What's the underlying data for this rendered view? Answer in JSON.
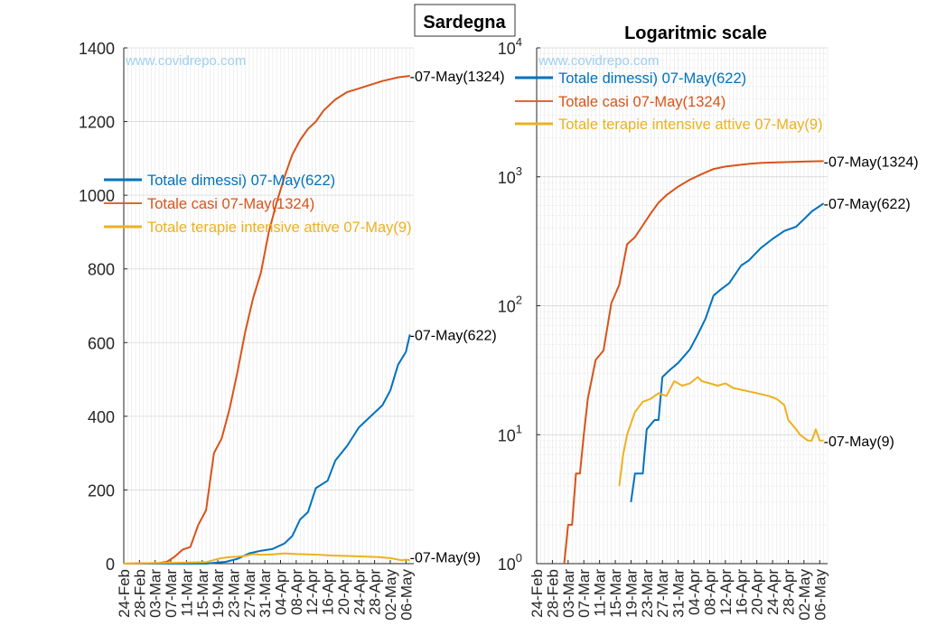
{
  "suptitle": "Sardegna",
  "watermark": "www.covidrepo.com",
  "colors": {
    "dimessi": "#0072BD",
    "casi": "#D95319",
    "terapie": "#EDB120",
    "watermark": "#9fd0f0"
  },
  "chart_data": [
    {
      "type": "line",
      "title": "",
      "xlabel": "",
      "ylabel": "",
      "ylim": [
        0,
        1400
      ],
      "yticks": [
        "0",
        "200",
        "400",
        "600",
        "800",
        "1000",
        "1200",
        "1400"
      ],
      "xticks": [
        "24-Feb",
        "28-Feb",
        "03-Mar",
        "07-Mar",
        "11-Mar",
        "15-Mar",
        "19-Mar",
        "23-Mar",
        "27-Mar",
        "31-Mar",
        "04-Apr",
        "08-Apr",
        "12-Apr",
        "16-Apr",
        "20-Apr",
        "24-Apr",
        "28-Apr",
        "02-May",
        "06-May"
      ],
      "grid": true,
      "legend": "left",
      "legend_entries": [
        "Totale dimessi) 07-May(622)",
        "Totale casi 07-May(1324)",
        "Totale terapie intensive attive 07-May(9)"
      ],
      "end_labels": [
        "-07-May(622)",
        "-07-May(1324)",
        "-07-May(9)"
      ],
      "series": [
        {
          "name": "Totale dimessi) 07-May(622)",
          "key": "dimessi",
          "x": [
            "2020-02-24",
            "2020-03-10",
            "2020-03-16",
            "2020-03-19",
            "2020-03-21",
            "2020-03-24",
            "2020-03-27",
            "2020-03-30",
            "2020-04-02",
            "2020-04-05",
            "2020-04-07",
            "2020-04-09",
            "2020-04-11",
            "2020-04-13",
            "2020-04-16",
            "2020-04-18",
            "2020-04-21",
            "2020-04-24",
            "2020-04-27",
            "2020-04-30",
            "2020-05-02",
            "2020-05-04",
            "2020-05-06",
            "2020-05-07"
          ],
          "values": [
            0,
            0,
            0,
            3,
            5,
            13,
            28,
            35,
            40,
            55,
            75,
            120,
            140,
            205,
            225,
            280,
            320,
            370,
            400,
            430,
            470,
            540,
            575,
            622
          ]
        },
        {
          "name": "Totale casi 07-May(1324)",
          "key": "casi",
          "x": [
            "2020-02-24",
            "2020-03-04",
            "2020-03-06",
            "2020-03-08",
            "2020-03-10",
            "2020-03-12",
            "2020-03-14",
            "2020-03-16",
            "2020-03-18",
            "2020-03-20",
            "2020-03-22",
            "2020-03-24",
            "2020-03-26",
            "2020-03-28",
            "2020-03-30",
            "2020-04-01",
            "2020-04-03",
            "2020-04-05",
            "2020-04-07",
            "2020-04-09",
            "2020-04-11",
            "2020-04-13",
            "2020-04-15",
            "2020-04-18",
            "2020-04-21",
            "2020-04-24",
            "2020-04-27",
            "2020-04-30",
            "2020-05-02",
            "2020-05-04",
            "2020-05-07"
          ],
          "values": [
            0,
            2,
            5,
            19,
            38,
            45,
            105,
            145,
            300,
            340,
            420,
            520,
            630,
            720,
            790,
            900,
            980,
            1050,
            1110,
            1150,
            1180,
            1200,
            1230,
            1260,
            1280,
            1290,
            1300,
            1310,
            1315,
            1320,
            1324
          ]
        },
        {
          "name": "Totale terapie intensive attive 07-May(9)",
          "key": "terapie",
          "x": [
            "2020-02-24",
            "2020-03-16",
            "2020-03-18",
            "2020-03-20",
            "2020-03-22",
            "2020-03-24",
            "2020-03-26",
            "2020-03-28",
            "2020-03-30",
            "2020-04-02",
            "2020-04-05",
            "2020-04-08",
            "2020-04-11",
            "2020-04-14",
            "2020-04-17",
            "2020-04-20",
            "2020-04-23",
            "2020-04-26",
            "2020-04-29",
            "2020-05-02",
            "2020-05-04",
            "2020-05-05",
            "2020-05-06",
            "2020-05-07"
          ],
          "values": [
            0,
            4,
            10,
            15,
            18,
            19,
            21,
            26,
            24,
            25,
            28,
            26,
            25,
            24,
            22,
            21,
            20,
            19,
            18,
            15,
            11,
            9,
            11,
            9
          ]
        }
      ]
    },
    {
      "type": "line",
      "title": "Logaritmic scale",
      "xlabel": "",
      "ylabel": "",
      "yscale": "log",
      "ylim": [
        1,
        10000
      ],
      "yticks": [
        {
          "base": "10",
          "exp": "0"
        },
        {
          "base": "10",
          "exp": "1"
        },
        {
          "base": "10",
          "exp": "2"
        },
        {
          "base": "10",
          "exp": "3"
        },
        {
          "base": "10",
          "exp": "4"
        }
      ],
      "xticks": [
        "24-Feb",
        "28-Feb",
        "03-Mar",
        "07-Mar",
        "11-Mar",
        "15-Mar",
        "19-Mar",
        "23-Mar",
        "27-Mar",
        "31-Mar",
        "04-Apr",
        "08-Apr",
        "12-Apr",
        "16-Apr",
        "20-Apr",
        "24-Apr",
        "28-Apr",
        "02-May",
        "06-May"
      ],
      "grid": true,
      "legend": "top",
      "legend_entries": [
        "Totale dimessi) 07-May(622)",
        "Totale casi 07-May(1324)",
        "Totale terapie intensive attive 07-May(9)"
      ],
      "end_labels": [
        "-07-May(622)",
        "-07-May(1324)",
        "-07-May(9)"
      ],
      "series": [
        {
          "name": "Totale dimessi) 07-May(622)",
          "key": "dimessi",
          "x": [
            "2020-03-19",
            "2020-03-20",
            "2020-03-22",
            "2020-03-23",
            "2020-03-25",
            "2020-03-26",
            "2020-03-27",
            "2020-03-29",
            "2020-03-31",
            "2020-04-03",
            "2020-04-05",
            "2020-04-07",
            "2020-04-09",
            "2020-04-11",
            "2020-04-13",
            "2020-04-16",
            "2020-04-18",
            "2020-04-21",
            "2020-04-24",
            "2020-04-27",
            "2020-04-30",
            "2020-05-02",
            "2020-05-04",
            "2020-05-07"
          ],
          "values": [
            3,
            5,
            5,
            11,
            13,
            13,
            28,
            32,
            36,
            46,
            60,
            80,
            120,
            135,
            150,
            205,
            225,
            280,
            330,
            380,
            410,
            470,
            540,
            622
          ]
        },
        {
          "name": "Totale casi 07-May(1324)",
          "key": "casi",
          "x": [
            "2020-03-02",
            "2020-03-03",
            "2020-03-04",
            "2020-03-05",
            "2020-03-06",
            "2020-03-07",
            "2020-03-08",
            "2020-03-10",
            "2020-03-12",
            "2020-03-14",
            "2020-03-16",
            "2020-03-18",
            "2020-03-20",
            "2020-03-22",
            "2020-03-24",
            "2020-03-26",
            "2020-03-28",
            "2020-03-31",
            "2020-04-03",
            "2020-04-06",
            "2020-04-09",
            "2020-04-12",
            "2020-04-15",
            "2020-04-18",
            "2020-04-21",
            "2020-04-25",
            "2020-04-29",
            "2020-05-03",
            "2020-05-07"
          ],
          "values": [
            1,
            2,
            2,
            5,
            5,
            10,
            19,
            38,
            45,
            105,
            145,
            300,
            340,
            420,
            520,
            630,
            720,
            840,
            950,
            1050,
            1150,
            1200,
            1230,
            1260,
            1280,
            1295,
            1305,
            1315,
            1324
          ]
        },
        {
          "name": "Totale terapie intensive attive 07-May(9)",
          "key": "terapie",
          "x": [
            "2020-03-16",
            "2020-03-17",
            "2020-03-18",
            "2020-03-20",
            "2020-03-22",
            "2020-03-24",
            "2020-03-26",
            "2020-03-28",
            "2020-03-30",
            "2020-04-01",
            "2020-04-03",
            "2020-04-05",
            "2020-04-06",
            "2020-04-08",
            "2020-04-10",
            "2020-04-12",
            "2020-04-14",
            "2020-04-17",
            "2020-04-20",
            "2020-04-23",
            "2020-04-25",
            "2020-04-27",
            "2020-04-28",
            "2020-04-30",
            "2020-05-01",
            "2020-05-03",
            "2020-05-04",
            "2020-05-05",
            "2020-05-06",
            "2020-05-07"
          ],
          "values": [
            4,
            7,
            10,
            15,
            18,
            19,
            21,
            20,
            26,
            24,
            25,
            28,
            26,
            25,
            24,
            25,
            23,
            22,
            21,
            20,
            19,
            17,
            13,
            11,
            10,
            9,
            9,
            11,
            9,
            9
          ]
        }
      ]
    }
  ]
}
